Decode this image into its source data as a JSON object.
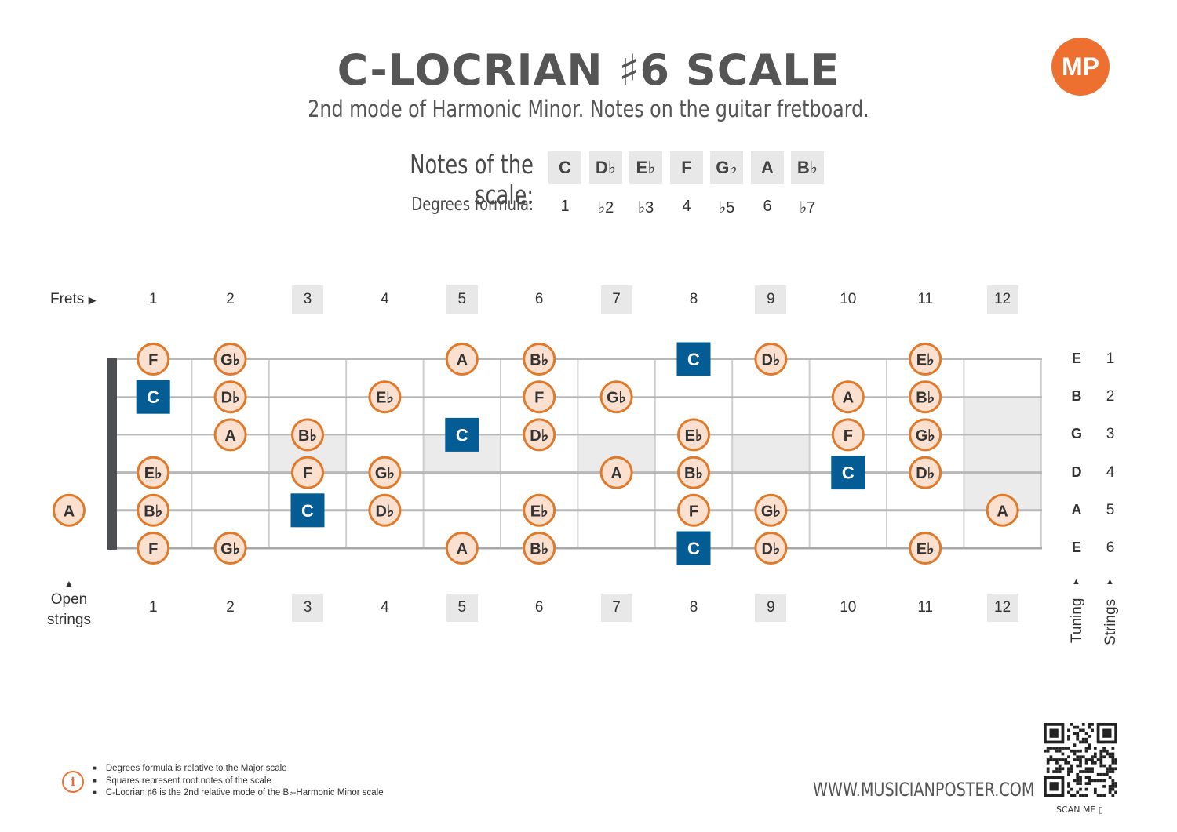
{
  "header": {
    "title": "C-LOCRIAN ♯6 SCALE",
    "subtitle": "2nd mode of Harmonic Minor. Notes on the guitar fretboard.",
    "logo_text": "MP",
    "accent_color": "#ee7031"
  },
  "scale": {
    "notes_label": "Notes of the scale:",
    "degrees_label": "Degrees formula:",
    "notes": [
      "C",
      "D♭",
      "E♭",
      "F",
      "G♭",
      "A",
      "B♭"
    ],
    "degrees": [
      "1",
      "♭2",
      "♭3",
      "4",
      "♭5",
      "6",
      "♭7"
    ]
  },
  "fretboard": {
    "frets_label": "Frets",
    "open_label_line1": "Open",
    "open_label_line2": "strings",
    "fret_numbers": [
      "1",
      "2",
      "3",
      "4",
      "5",
      "6",
      "7",
      "8",
      "9",
      "10",
      "11",
      "12"
    ],
    "marked_frets": [
      3,
      5,
      7,
      9,
      12
    ],
    "tuning_label": "Tuning",
    "strings_label": "Strings",
    "strings": [
      {
        "name": "E",
        "number": "1"
      },
      {
        "name": "B",
        "number": "2"
      },
      {
        "name": "G",
        "number": "3"
      },
      {
        "name": "D",
        "number": "4"
      },
      {
        "name": "A",
        "number": "5"
      },
      {
        "name": "E",
        "number": "6"
      }
    ],
    "root_color": "#035c94",
    "note_fill": "#fbe0cf",
    "note_stroke": "#e07a2a",
    "positions": [
      {
        "string": 1,
        "fret": 1,
        "note": "F",
        "root": false
      },
      {
        "string": 1,
        "fret": 2,
        "note": "G♭",
        "root": false
      },
      {
        "string": 1,
        "fret": 5,
        "note": "A",
        "root": false
      },
      {
        "string": 1,
        "fret": 6,
        "note": "B♭",
        "root": false
      },
      {
        "string": 1,
        "fret": 8,
        "note": "C",
        "root": true
      },
      {
        "string": 1,
        "fret": 9,
        "note": "D♭",
        "root": false
      },
      {
        "string": 1,
        "fret": 11,
        "note": "E♭",
        "root": false
      },
      {
        "string": 2,
        "fret": 1,
        "note": "C",
        "root": true
      },
      {
        "string": 2,
        "fret": 2,
        "note": "D♭",
        "root": false
      },
      {
        "string": 2,
        "fret": 4,
        "note": "E♭",
        "root": false
      },
      {
        "string": 2,
        "fret": 6,
        "note": "F",
        "root": false
      },
      {
        "string": 2,
        "fret": 7,
        "note": "G♭",
        "root": false
      },
      {
        "string": 2,
        "fret": 10,
        "note": "A",
        "root": false
      },
      {
        "string": 2,
        "fret": 11,
        "note": "B♭",
        "root": false
      },
      {
        "string": 3,
        "fret": 2,
        "note": "A",
        "root": false
      },
      {
        "string": 3,
        "fret": 3,
        "note": "B♭",
        "root": false
      },
      {
        "string": 3,
        "fret": 5,
        "note": "C",
        "root": true
      },
      {
        "string": 3,
        "fret": 6,
        "note": "D♭",
        "root": false
      },
      {
        "string": 3,
        "fret": 8,
        "note": "E♭",
        "root": false
      },
      {
        "string": 3,
        "fret": 10,
        "note": "F",
        "root": false
      },
      {
        "string": 3,
        "fret": 11,
        "note": "G♭",
        "root": false
      },
      {
        "string": 4,
        "fret": 1,
        "note": "E♭",
        "root": false
      },
      {
        "string": 4,
        "fret": 3,
        "note": "F",
        "root": false
      },
      {
        "string": 4,
        "fret": 4,
        "note": "G♭",
        "root": false
      },
      {
        "string": 4,
        "fret": 7,
        "note": "A",
        "root": false
      },
      {
        "string": 4,
        "fret": 8,
        "note": "B♭",
        "root": false
      },
      {
        "string": 4,
        "fret": 10,
        "note": "C",
        "root": true
      },
      {
        "string": 4,
        "fret": 11,
        "note": "D♭",
        "root": false
      },
      {
        "string": 5,
        "fret": 0,
        "note": "A",
        "root": false
      },
      {
        "string": 5,
        "fret": 1,
        "note": "B♭",
        "root": false
      },
      {
        "string": 5,
        "fret": 3,
        "note": "C",
        "root": true
      },
      {
        "string": 5,
        "fret": 4,
        "note": "D♭",
        "root": false
      },
      {
        "string": 5,
        "fret": 6,
        "note": "E♭",
        "root": false
      },
      {
        "string": 5,
        "fret": 8,
        "note": "F",
        "root": false
      },
      {
        "string": 5,
        "fret": 9,
        "note": "G♭",
        "root": false
      },
      {
        "string": 5,
        "fret": 12,
        "note": "A",
        "root": false
      },
      {
        "string": 6,
        "fret": 1,
        "note": "F",
        "root": false
      },
      {
        "string": 6,
        "fret": 2,
        "note": "G♭",
        "root": false
      },
      {
        "string": 6,
        "fret": 5,
        "note": "A",
        "root": false
      },
      {
        "string": 6,
        "fret": 6,
        "note": "B♭",
        "root": false
      },
      {
        "string": 6,
        "fret": 8,
        "note": "C",
        "root": true
      },
      {
        "string": 6,
        "fret": 9,
        "note": "D♭",
        "root": false
      },
      {
        "string": 6,
        "fret": 11,
        "note": "E♭",
        "root": false
      }
    ]
  },
  "footer": {
    "notes": [
      "Degrees formula is relative to the Major scale",
      "Squares represent root notes of the scale",
      "C-Locrian ♯6 is the 2nd relative mode of the B♭-Harmonic Minor scale"
    ],
    "info_icon": "info-icon",
    "url": "WWW.MUSICIANPOSTER.COM",
    "scan_label": "SCAN ME ▯"
  }
}
